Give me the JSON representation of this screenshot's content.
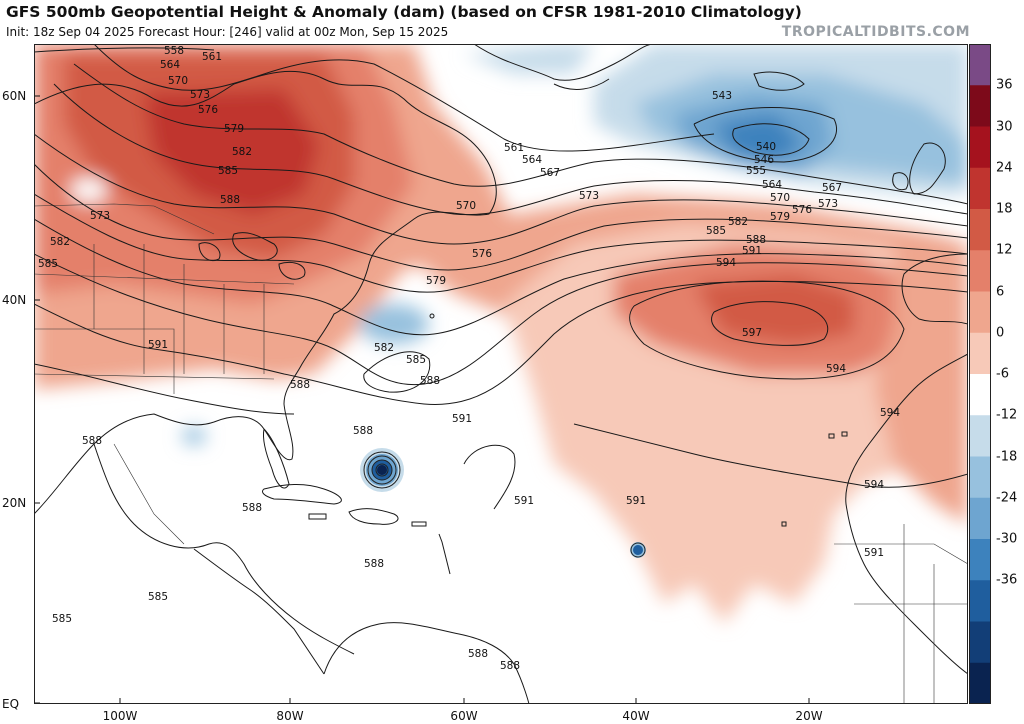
{
  "header": {
    "title": "GFS 500mb Geopotential Height & Anomaly (dam) (based on CFSR 1981-2010 Climatology)",
    "subtitle": "Init: 18z Sep 04 2025   Forecast Hour: [246]   valid at 00z Mon, Sep 15 2025",
    "brand": "TROPICALTIDBITS.COM"
  },
  "axes": {
    "lat_labels": [
      "60N",
      "40N",
      "20N",
      "EQ"
    ],
    "lon_labels": [
      "100W",
      "80W",
      "60W",
      "40W",
      "20W"
    ]
  },
  "colorbar": {
    "labels": [
      "36",
      "30",
      "24",
      "18",
      "12",
      "6",
      "0",
      "-6",
      "-12",
      "-18",
      "-24",
      "-30",
      "-36"
    ],
    "colors": [
      "#7a4a86",
      "#7d0a1a",
      "#a5121e",
      "#c0342f",
      "#d25a45",
      "#e4806a",
      "#efa68e",
      "#f7c9b8",
      "#ffffff",
      "#c6dcea",
      "#97c1de",
      "#6ea5d0",
      "#3d82bd",
      "#1f5e9e",
      "#123e77",
      "#0a2350"
    ]
  },
  "contours": [
    {
      "label": "558"
    },
    {
      "label": "561"
    },
    {
      "label": "564"
    },
    {
      "label": "570"
    },
    {
      "label": "573"
    },
    {
      "label": "576"
    },
    {
      "label": "579"
    },
    {
      "label": "582"
    },
    {
      "label": "585"
    },
    {
      "label": "588"
    },
    {
      "label": "573"
    },
    {
      "label": "582"
    },
    {
      "label": "585"
    },
    {
      "label": "591"
    },
    {
      "label": "561"
    },
    {
      "label": "564"
    },
    {
      "label": "567"
    },
    {
      "label": "570"
    },
    {
      "label": "573"
    },
    {
      "label": "576"
    },
    {
      "label": "579"
    },
    {
      "label": "582"
    },
    {
      "label": "585"
    },
    {
      "label": "588"
    },
    {
      "label": "588"
    },
    {
      "label": "543"
    },
    {
      "label": "540"
    },
    {
      "label": "546"
    },
    {
      "label": "555"
    },
    {
      "label": "564"
    },
    {
      "label": "567"
    },
    {
      "label": "570"
    },
    {
      "label": "573"
    },
    {
      "label": "576"
    },
    {
      "label": "579"
    },
    {
      "label": "582"
    },
    {
      "label": "585"
    },
    {
      "label": "588"
    },
    {
      "label": "591"
    },
    {
      "label": "594"
    },
    {
      "label": "597"
    },
    {
      "label": "594"
    },
    {
      "label": "594"
    },
    {
      "label": "594"
    },
    {
      "label": "591"
    },
    {
      "label": "591"
    },
    {
      "label": "591"
    },
    {
      "label": "591"
    },
    {
      "label": "588"
    },
    {
      "label": "588"
    },
    {
      "label": "588"
    },
    {
      "label": "588"
    },
    {
      "label": "585"
    },
    {
      "label": "585"
    },
    {
      "label": "588"
    },
    {
      "label": "588"
    }
  ]
}
